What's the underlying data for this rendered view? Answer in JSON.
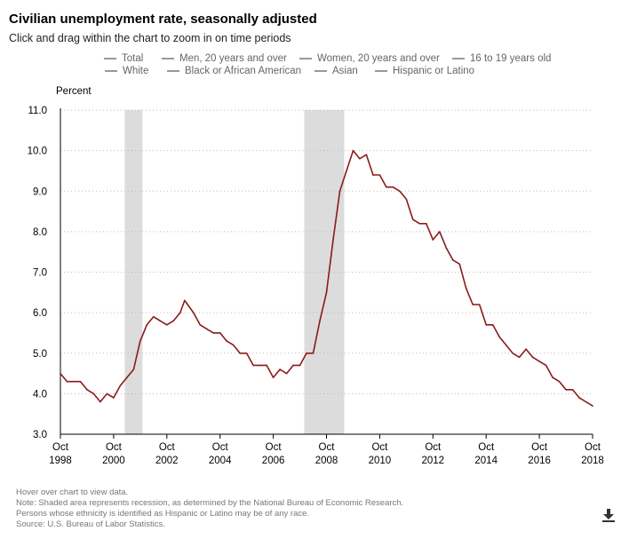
{
  "header": {
    "title": "Civilian unemployment rate, seasonally adjusted",
    "subtitle": "Click and drag within the chart to zoom in on time periods"
  },
  "legend": {
    "items": [
      {
        "label": "Total",
        "active": true
      },
      {
        "label": "Men, 20 years and over",
        "active": false
      },
      {
        "label": "Women, 20 years and over",
        "active": false
      },
      {
        "label": "16 to 19 years old",
        "active": false
      },
      {
        "label": "White",
        "active": false
      },
      {
        "label": "Black or African American",
        "active": false
      },
      {
        "label": "Asian",
        "active": false
      },
      {
        "label": "Hispanic or Latino",
        "active": false
      }
    ]
  },
  "notes": {
    "hover": "Hover over chart to view data.",
    "recession": "Note: Shaded area represents recession, as determined by the National Bureau of Economic Research.",
    "hispanic": "Persons whose ethnicity is identified as Hispanic or Latino may be of any race.",
    "source": "Source: U.S. Bureau of Labor Statistics."
  },
  "icons": {
    "download": "download-icon"
  },
  "colors": {
    "series": "#8b1a1a",
    "recession": "#dcdcdc",
    "grid": "#bbbbbb",
    "legend_active": "#1a2a8c"
  },
  "chart_data": {
    "type": "line",
    "title": "Civilian unemployment rate, seasonally adjusted",
    "ylabel": "Percent",
    "ylim": [
      3.0,
      11.0
    ],
    "yticks": [
      "3.0",
      "4.0",
      "5.0",
      "6.0",
      "7.0",
      "8.0",
      "9.0",
      "10.0",
      "11.0"
    ],
    "xlim": [
      "1998-10",
      "2018-10"
    ],
    "xticks": [
      {
        "month": "Oct",
        "year": "1998"
      },
      {
        "month": "Oct",
        "year": "2000"
      },
      {
        "month": "Oct",
        "year": "2002"
      },
      {
        "month": "Oct",
        "year": "2004"
      },
      {
        "month": "Oct",
        "year": "2006"
      },
      {
        "month": "Oct",
        "year": "2008"
      },
      {
        "month": "Oct",
        "year": "2010"
      },
      {
        "month": "Oct",
        "year": "2012"
      },
      {
        "month": "Oct",
        "year": "2014"
      },
      {
        "month": "Oct",
        "year": "2016"
      },
      {
        "month": "Oct",
        "year": "2018"
      }
    ],
    "grid": "horizontal dotted",
    "legend_placement": "top",
    "recessions": [
      [
        "2001-03",
        "2001-11"
      ],
      [
        "2007-12",
        "2009-06"
      ]
    ],
    "series": [
      {
        "name": "Total",
        "color": "#8b1a1a",
        "points": [
          [
            "1998-10",
            4.5
          ],
          [
            "1999-01",
            4.3
          ],
          [
            "1999-04",
            4.3
          ],
          [
            "1999-07",
            4.3
          ],
          [
            "1999-10",
            4.1
          ],
          [
            "2000-01",
            4.0
          ],
          [
            "2000-04",
            3.8
          ],
          [
            "2000-07",
            4.0
          ],
          [
            "2000-10",
            3.9
          ],
          [
            "2001-01",
            4.2
          ],
          [
            "2001-04",
            4.4
          ],
          [
            "2001-07",
            4.6
          ],
          [
            "2001-10",
            5.3
          ],
          [
            "2002-01",
            5.7
          ],
          [
            "2002-04",
            5.9
          ],
          [
            "2002-07",
            5.8
          ],
          [
            "2002-10",
            5.7
          ],
          [
            "2003-01",
            5.8
          ],
          [
            "2003-04",
            6.0
          ],
          [
            "2003-06",
            6.3
          ],
          [
            "2003-10",
            6.0
          ],
          [
            "2004-01",
            5.7
          ],
          [
            "2004-04",
            5.6
          ],
          [
            "2004-07",
            5.5
          ],
          [
            "2004-10",
            5.5
          ],
          [
            "2005-01",
            5.3
          ],
          [
            "2005-04",
            5.2
          ],
          [
            "2005-07",
            5.0
          ],
          [
            "2005-10",
            5.0
          ],
          [
            "2006-01",
            4.7
          ],
          [
            "2006-04",
            4.7
          ],
          [
            "2006-07",
            4.7
          ],
          [
            "2006-10",
            4.4
          ],
          [
            "2007-01",
            4.6
          ],
          [
            "2007-04",
            4.5
          ],
          [
            "2007-07",
            4.7
          ],
          [
            "2007-10",
            4.7
          ],
          [
            "2008-01",
            5.0
          ],
          [
            "2008-04",
            5.0
          ],
          [
            "2008-07",
            5.8
          ],
          [
            "2008-10",
            6.5
          ],
          [
            "2009-01",
            7.8
          ],
          [
            "2009-04",
            9.0
          ],
          [
            "2009-07",
            9.5
          ],
          [
            "2009-10",
            10.0
          ],
          [
            "2010-01",
            9.8
          ],
          [
            "2010-04",
            9.9
          ],
          [
            "2010-07",
            9.4
          ],
          [
            "2010-10",
            9.4
          ],
          [
            "2011-01",
            9.1
          ],
          [
            "2011-04",
            9.1
          ],
          [
            "2011-07",
            9.0
          ],
          [
            "2011-10",
            8.8
          ],
          [
            "2012-01",
            8.3
          ],
          [
            "2012-04",
            8.2
          ],
          [
            "2012-07",
            8.2
          ],
          [
            "2012-10",
            7.8
          ],
          [
            "2013-01",
            8.0
          ],
          [
            "2013-04",
            7.6
          ],
          [
            "2013-07",
            7.3
          ],
          [
            "2013-10",
            7.2
          ],
          [
            "2014-01",
            6.6
          ],
          [
            "2014-04",
            6.2
          ],
          [
            "2014-07",
            6.2
          ],
          [
            "2014-10",
            5.7
          ],
          [
            "2015-01",
            5.7
          ],
          [
            "2015-04",
            5.4
          ],
          [
            "2015-07",
            5.2
          ],
          [
            "2015-10",
            5.0
          ],
          [
            "2016-01",
            4.9
          ],
          [
            "2016-04",
            5.1
          ],
          [
            "2016-07",
            4.9
          ],
          [
            "2016-10",
            4.8
          ],
          [
            "2017-01",
            4.7
          ],
          [
            "2017-04",
            4.4
          ],
          [
            "2017-07",
            4.3
          ],
          [
            "2017-10",
            4.1
          ],
          [
            "2018-01",
            4.1
          ],
          [
            "2018-04",
            3.9
          ],
          [
            "2018-07",
            3.8
          ],
          [
            "2018-10",
            3.7
          ]
        ]
      }
    ]
  }
}
